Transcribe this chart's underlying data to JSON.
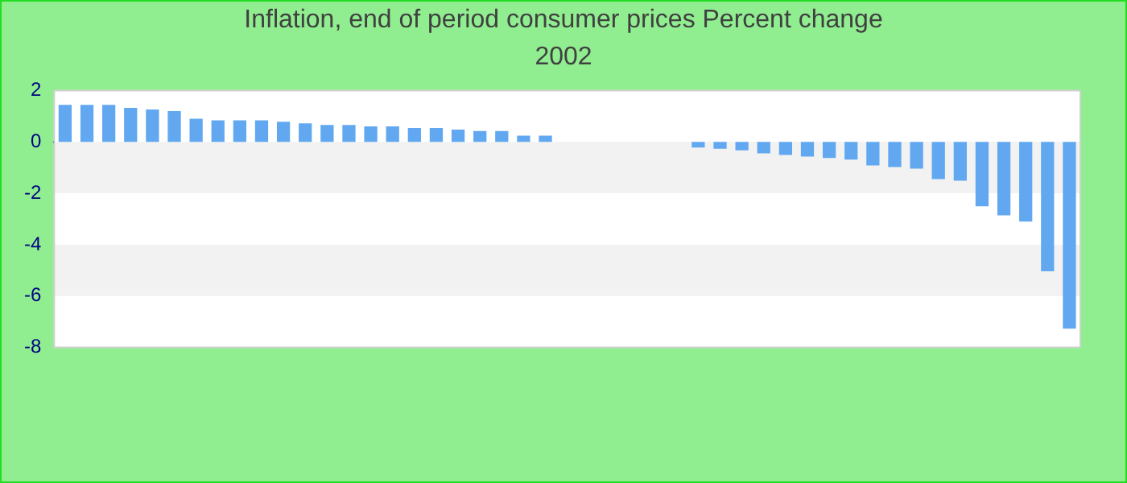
{
  "chart_data": {
    "type": "bar",
    "title": "Inflation, end of period consumer prices  Percent change",
    "subtitle": "2002",
    "categories": [
      null,
      null,
      null,
      null,
      null,
      null,
      null,
      null,
      null,
      null,
      null,
      null,
      null,
      null,
      null,
      null,
      null,
      null,
      null,
      null,
      null,
      null,
      null,
      null,
      null,
      null,
      null,
      null,
      null,
      null,
      null,
      null,
      null,
      null,
      null,
      null,
      null,
      null,
      null,
      null,
      null,
      null,
      null,
      null,
      null,
      null,
      null
    ],
    "values": [
      1.44,
      1.44,
      1.44,
      1.32,
      1.26,
      1.2,
      0.9,
      0.84,
      0.84,
      0.84,
      0.78,
      0.72,
      0.66,
      0.66,
      0.6,
      0.6,
      0.54,
      0.54,
      0.48,
      0.42,
      0.42,
      0.24,
      0.24,
      0,
      0,
      0,
      0,
      0,
      0,
      -0.22,
      -0.27,
      -0.33,
      -0.45,
      -0.51,
      -0.57,
      -0.63,
      -0.69,
      -0.92,
      -0.98,
      -1.04,
      -1.45,
      -1.51,
      -2.51,
      -2.86,
      -3.1,
      -5.04,
      -7.27
    ],
    "color": "#62a8f0",
    "ylim": [
      -8,
      2
    ],
    "yticks": [
      -8,
      -6,
      -4,
      -2,
      0,
      2
    ],
    "bands": [
      {
        "axis": "y",
        "from": -2,
        "to": 0,
        "color": "#f2f2f2"
      },
      {
        "axis": "y",
        "from": -6,
        "to": -4,
        "color": "#f2f2f2"
      }
    ],
    "tick_labels": "y",
    "grid": false,
    "legend": false
  }
}
